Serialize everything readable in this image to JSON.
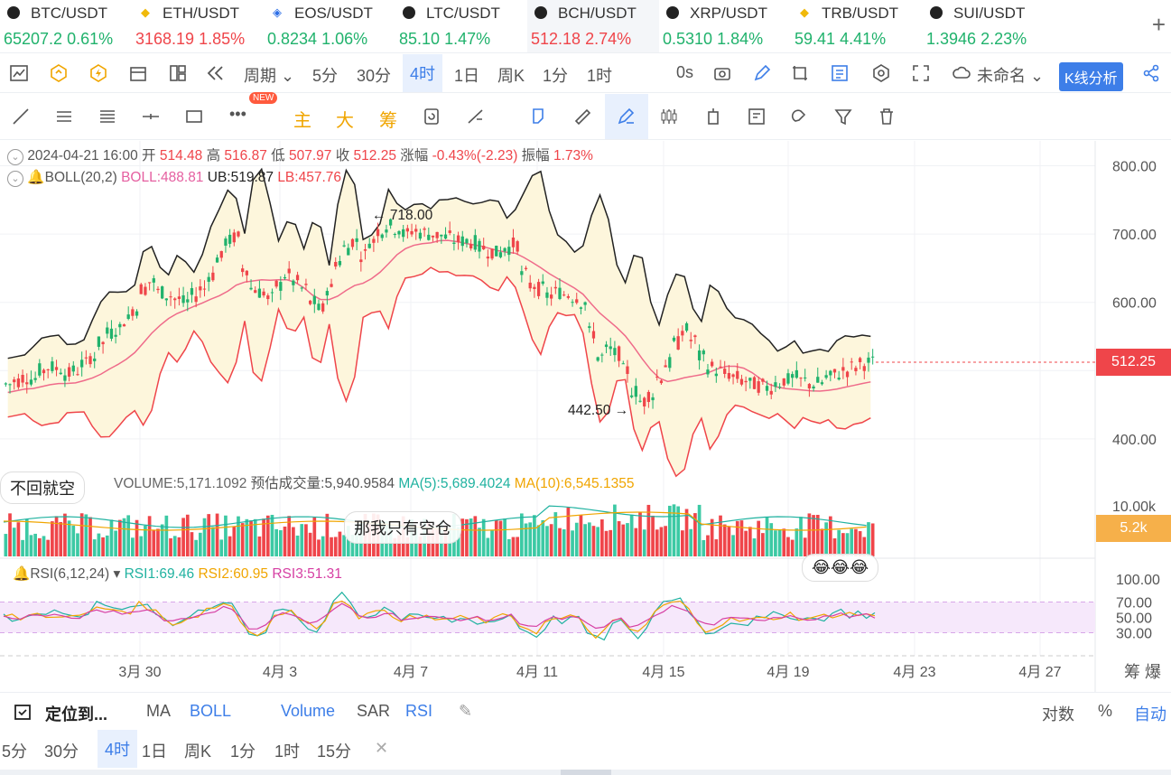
{
  "tickers": [
    {
      "sym": "BTC/USDT",
      "price": "65207.2",
      "chg": "0.61%",
      "dir": "up",
      "icon": "btc"
    },
    {
      "sym": "ETH/USDT",
      "price": "3168.19",
      "chg": "1.85%",
      "dir": "down",
      "icon": "eth"
    },
    {
      "sym": "EOS/USDT",
      "price": "0.8234",
      "chg": "1.06%",
      "dir": "up",
      "icon": "eos"
    },
    {
      "sym": "LTC/USDT",
      "price": "85.10",
      "chg": "1.47%",
      "dir": "up",
      "icon": "ltc"
    },
    {
      "sym": "BCH/USDT",
      "price": "512.18",
      "chg": "2.74%",
      "dir": "down",
      "icon": "bch"
    },
    {
      "sym": "XRP/USDT",
      "price": "0.5310",
      "chg": "1.84%",
      "dir": "up",
      "icon": "xrp"
    },
    {
      "sym": "TRB/USDT",
      "price": "59.41",
      "chg": "4.41%",
      "dir": "up",
      "icon": "trb"
    },
    {
      "sym": "SUI/USDT",
      "price": "1.3946",
      "chg": "2.23%",
      "dir": "up",
      "icon": "sui"
    }
  ],
  "toolbar": {
    "period_label": "周期",
    "intervals": [
      "5分",
      "30分",
      "4时",
      "1日",
      "周K",
      "1分",
      "1时"
    ],
    "selected_interval": "4时",
    "countdown": "0s",
    "layout_name": "未命名",
    "kline_button": "K线分析"
  },
  "drawbar": {
    "new_badge": "NEW",
    "main_label": "主",
    "big_label": "大",
    "chip_label": "筹"
  },
  "info": {
    "datetime": "2024-04-21 16:00",
    "open_label": "开",
    "open": "514.48",
    "high_label": "高",
    "high": "516.87",
    "low_label": "低",
    "low": "507.97",
    "close_label": "收",
    "close": "512.25",
    "change_label": "涨幅",
    "change": "-0.43%(-2.23)",
    "amp_label": "振幅",
    "amp": "1.73%",
    "boll_label": "BOLL(20,2)",
    "boll": "BOLL:488.81",
    "ub": "UB:519.87",
    "lb": "LB:457.76"
  },
  "annotations": {
    "high": "718.00",
    "low": "442.50"
  },
  "price_axis": [
    "800.00",
    "700.00",
    "600.00",
    "400.00"
  ],
  "current_price": "512.25",
  "volume": {
    "label": "VOLUME:5,171.1092",
    "forecast": "预估成交量:5,940.9584",
    "ma5": "MA(5):5,689.4024",
    "ma10": "MA(10):6,545.1355",
    "axis_top": "10.00k",
    "current": "5.2k"
  },
  "rsi": {
    "label": "RSI(6,12,24)",
    "rsi1": "RSI1:69.46",
    "rsi2": "RSI2:60.95",
    "rsi3": "RSI3:51.31",
    "axis": [
      "100.00",
      "70.00",
      "50.00",
      "30.00"
    ]
  },
  "bubbles": {
    "b1": "不回就空",
    "b2": "那我只有空仓",
    "b3": "😂😂😂"
  },
  "date_axis": [
    "3月 30",
    "4月 3",
    "4月 7",
    "4月 11",
    "4月 15",
    "4月 19",
    "4月 23",
    "4月 27"
  ],
  "corner_labels": {
    "chip": "筹",
    "burst": "爆"
  },
  "bottom": {
    "locate": "定位到...",
    "ma": "MA",
    "boll": "BOLL",
    "volume": "Volume",
    "sar": "SAR",
    "rsi": "RSI",
    "log": "对数",
    "pct": "%",
    "auto": "自动",
    "intervals": [
      "5分",
      "30分",
      "4时",
      "1日",
      "周K",
      "1分",
      "1时",
      "15分"
    ],
    "selected": "4时"
  },
  "colors": {
    "up": "#20b26c",
    "down": "#ef454a",
    "accent": "#3d7ee8",
    "boll_mid": "#ef6b8a",
    "boll_band": "#fdf6dc"
  },
  "chart_data": {
    "type": "candlestick",
    "price_range": [
      380,
      810
    ],
    "close_path": [
      480,
      485,
      490,
      488,
      500,
      505,
      503,
      495,
      500,
      510,
      520,
      540,
      555,
      560,
      575,
      590,
      620,
      630,
      615,
      610,
      605,
      600,
      610,
      620,
      640,
      665,
      690,
      695,
      650,
      620,
      615,
      605,
      625,
      640,
      630,
      620,
      600,
      590,
      620,
      660,
      680,
      690,
      670,
      690,
      705,
      712,
      708,
      700,
      705,
      702,
      700,
      698,
      695,
      690,
      690,
      688,
      680,
      675,
      672,
      680,
      685,
      640,
      625,
      620,
      610,
      615,
      612,
      608,
      600,
      555,
      520,
      530,
      525,
      500,
      470,
      455,
      465,
      490,
      510,
      540,
      560,
      545,
      520,
      505,
      500,
      495,
      490,
      485,
      480,
      478,
      475,
      482,
      486,
      490,
      485,
      480,
      482,
      490,
      495,
      500,
      505,
      510,
      512
    ]
  }
}
